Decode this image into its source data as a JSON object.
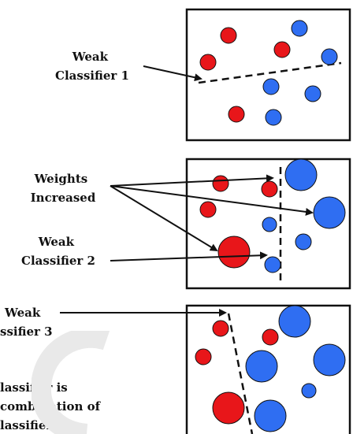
{
  "colors": {
    "red_point": "#e8161a",
    "blue_point": "#2f6ef2",
    "outline": "#111111",
    "arrow": "#111111",
    "watermark": "#e9e9e9"
  },
  "labels": {
    "weak_classifier_1": [
      "Weak",
      "Classifier 1"
    ],
    "weights_increased": [
      "Weights",
      "Increased"
    ],
    "weak_classifier_2": [
      "Weak",
      "Classifier 2"
    ],
    "weak_classifier_3": [
      "Weak",
      "ssifier 3"
    ],
    "final_classifier": [
      "lassifier is",
      "combination of",
      "lassifiers"
    ]
  },
  "icons": {
    "watermark": "faint-curved-logo-watermark"
  }
}
